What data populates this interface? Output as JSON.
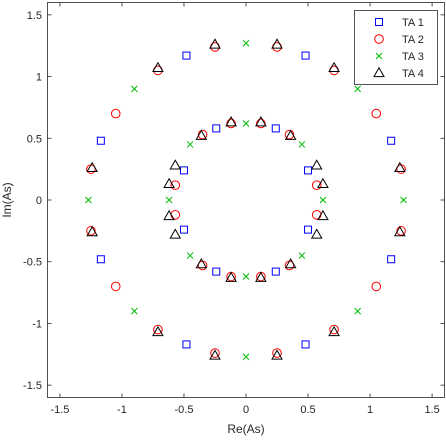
{
  "colors": {
    "TA 1": "#0000ff",
    "TA 2": "#ff0000",
    "TA 3": "#00bb00",
    "TA 4": "#000000",
    "axis": "#262626"
  },
  "chart_data": {
    "type": "scatter",
    "xlabel": "Re(As)",
    "ylabel": "Im(As)",
    "xlim": [
      -1.6,
      1.6
    ],
    "ylim": [
      -1.6,
      1.6
    ],
    "xticks": [
      -1.5,
      -1,
      -0.5,
      0,
      0.5,
      1,
      1.5
    ],
    "xtick_labels": [
      "-1.5",
      "-1",
      "-0.5",
      "0",
      "0.5",
      "1",
      "1.5"
    ],
    "yticks": [
      1.5,
      1,
      0.5,
      0,
      -0.5,
      -1,
      -1.5
    ],
    "ytick_labels": [
      "1.5",
      "1",
      "0.5",
      "0",
      "-0.5",
      "-1",
      "-1.5"
    ],
    "grid": false,
    "legend_position": "top-right",
    "series": [
      {
        "name": "TA 1",
        "marker": "square",
        "x": [
          0.5,
          0.5,
          -0.5,
          -0.5,
          0.24,
          0.24,
          -0.24,
          -0.24,
          1.17,
          1.17,
          -1.17,
          -1.17,
          0.48,
          0.48,
          -0.48,
          -0.48
        ],
        "y": [
          0.24,
          -0.24,
          0.24,
          -0.24,
          0.58,
          -0.58,
          0.58,
          -0.58,
          0.48,
          -0.48,
          0.48,
          -0.48,
          1.17,
          -1.17,
          1.17,
          -1.17
        ]
      },
      {
        "name": "TA 2",
        "marker": "circle",
        "x": [
          0.57,
          0.57,
          -0.57,
          -0.57,
          0.12,
          0.12,
          -0.12,
          -0.12,
          0.35,
          0.35,
          -0.35,
          -0.35,
          1.25,
          1.25,
          -1.25,
          -1.25,
          0.71,
          0.71,
          -0.71,
          -0.71,
          0.25,
          0.25,
          -0.25,
          -0.25,
          1.05,
          1.05,
          -1.05,
          -1.05
        ],
        "y": [
          0.12,
          -0.12,
          0.12,
          -0.12,
          0.62,
          -0.62,
          0.62,
          -0.62,
          0.53,
          -0.53,
          0.53,
          -0.53,
          0.25,
          -0.25,
          0.25,
          -0.25,
          1.05,
          -1.05,
          1.05,
          -1.05,
          1.24,
          -1.24,
          1.24,
          -1.24,
          0.7,
          -0.7,
          0.7,
          -0.7
        ]
      },
      {
        "name": "TA 3",
        "marker": "x",
        "x": [
          0,
          0,
          0.62,
          -0.62,
          0.45,
          0.45,
          -0.45,
          -0.45,
          0,
          0,
          1.27,
          -1.27,
          0.9,
          0.9,
          -0.9,
          -0.9
        ],
        "y": [
          0.62,
          -0.62,
          0,
          0,
          0.45,
          -0.45,
          0.45,
          -0.45,
          1.27,
          -1.27,
          0,
          0,
          0.9,
          -0.9,
          0.9,
          -0.9
        ]
      },
      {
        "name": "TA 4",
        "marker": "triangle",
        "x": [
          0.12,
          0.12,
          -0.12,
          -0.12,
          0.36,
          0.36,
          -0.36,
          -0.36,
          0.62,
          0.62,
          -0.62,
          -0.62,
          0.57,
          0.57,
          -0.57,
          -0.57,
          0.71,
          0.71,
          -0.71,
          -0.71,
          1.24,
          1.24,
          -1.24,
          -1.24,
          0.25,
          0.25,
          -0.25,
          -0.25
        ],
        "y": [
          0.63,
          -0.63,
          0.63,
          -0.63,
          0.52,
          -0.52,
          0.52,
          -0.52,
          0.13,
          -0.13,
          0.13,
          -0.13,
          0.28,
          -0.28,
          0.28,
          -0.28,
          1.07,
          -1.07,
          1.07,
          -1.07,
          0.26,
          -0.26,
          0.26,
          -0.26,
          1.26,
          -1.26,
          1.26,
          -1.26
        ]
      }
    ]
  }
}
